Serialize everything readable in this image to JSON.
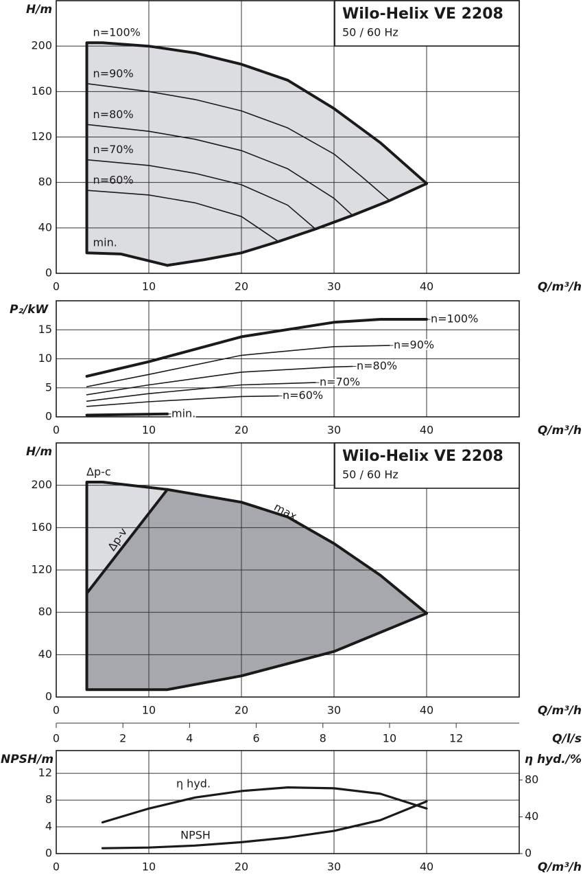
{
  "chart_data": [
    {
      "type": "line",
      "title": "Wilo-Helix VE 2208",
      "subtitle": "50 / 60 Hz",
      "y_label": "H/m",
      "x_label": "Q/m³/h",
      "xlim": [
        0,
        50
      ],
      "xticks": [
        0,
        10,
        20,
        30,
        40
      ],
      "ylim": [
        0,
        240
      ],
      "yticks": [
        0,
        40,
        80,
        120,
        160,
        200
      ],
      "grid": true,
      "fill_color": "#dcdde0",
      "series": [
        {
          "name": "n=100%",
          "x": [
            3.3,
            5,
            10,
            15,
            20,
            25,
            30,
            35,
            40
          ],
          "values": [
            203,
            203,
            200,
            194,
            184,
            170,
            145,
            115,
            79
          ],
          "linewidth": 4
        },
        {
          "name": "n=90%",
          "x": [
            3.3,
            10,
            15,
            20,
            25,
            30,
            33,
            36
          ],
          "values": [
            167,
            160,
            153,
            143,
            128,
            105,
            85,
            64
          ],
          "linewidth": 1.6
        },
        {
          "name": "n=80%",
          "x": [
            3.3,
            10,
            15,
            20,
            25,
            30,
            32
          ],
          "values": [
            131,
            125,
            118,
            108,
            92,
            66,
            51
          ],
          "linewidth": 1.6
        },
        {
          "name": "n=70%",
          "x": [
            3.3,
            10,
            15,
            20,
            25,
            28
          ],
          "values": [
            100,
            95,
            88,
            78,
            60,
            39
          ],
          "linewidth": 1.6
        },
        {
          "name": "n=60%",
          "x": [
            3.3,
            10,
            15,
            20,
            24
          ],
          "values": [
            73,
            69,
            62,
            50,
            28
          ],
          "linewidth": 1.6
        },
        {
          "name": "min.",
          "x": [
            3.3,
            7,
            12
          ],
          "values": [
            18,
            17,
            7
          ],
          "linewidth": 4
        },
        {
          "x": [
            12,
            16,
            20,
            24,
            28,
            32,
            36,
            40
          ],
          "values": [
            7,
            12,
            18,
            28,
            39,
            51,
            64,
            79
          ],
          "linewidth": 4
        }
      ]
    },
    {
      "type": "line",
      "y_label": "P₂/kW",
      "x_label": "Q/m³/h",
      "xlim": [
        0,
        50
      ],
      "xticks": [
        0,
        10,
        20,
        30,
        40
      ],
      "ylim": [
        0,
        20
      ],
      "yticks": [
        0,
        5,
        10,
        15
      ],
      "grid": true,
      "series": [
        {
          "name": "n=100%",
          "x": [
            3.3,
            10,
            20,
            30,
            35,
            40
          ],
          "values": [
            7,
            9.5,
            13.8,
            16.3,
            16.8,
            16.8
          ],
          "linewidth": 4
        },
        {
          "name": "n=90%",
          "x": [
            3.3,
            10,
            20,
            30,
            36
          ],
          "values": [
            5.2,
            7.3,
            10.6,
            12.1,
            12.3
          ],
          "linewidth": 1.6
        },
        {
          "name": "n=80%",
          "x": [
            3.3,
            10,
            20,
            30,
            32
          ],
          "values": [
            3.8,
            5.5,
            7.7,
            8.6,
            8.7
          ],
          "linewidth": 1.6
        },
        {
          "name": "n=70%",
          "x": [
            3.3,
            10,
            20,
            28
          ],
          "values": [
            2.7,
            4,
            5.5,
            5.9
          ],
          "linewidth": 1.6
        },
        {
          "name": "n=60%",
          "x": [
            3.3,
            10,
            20,
            24
          ],
          "values": [
            1.8,
            2.6,
            3.5,
            3.6
          ],
          "linewidth": 1.6
        },
        {
          "name": "min.",
          "x": [
            3.3,
            12
          ],
          "values": [
            0.3,
            0.5
          ],
          "linewidth": 4
        }
      ]
    },
    {
      "type": "area",
      "title": "Wilo-Helix VE 2208",
      "subtitle": "50 / 60 Hz",
      "y_label": "H/m",
      "x_label": "Q/m³/h",
      "x2_label": "Q/l/s",
      "xlim": [
        0,
        50
      ],
      "xticks": [
        0,
        10,
        20,
        30,
        40
      ],
      "x2lim": [
        0,
        13.89
      ],
      "x2ticks": [
        0,
        2,
        4,
        6,
        8,
        10,
        12
      ],
      "ylim": [
        0,
        240
      ],
      "yticks": [
        0,
        40,
        80,
        120,
        160,
        200
      ],
      "grid": true,
      "annotation": "Δp-c",
      "fill_color": "#dcdde0",
      "fill_color_2": "#a6a8ad",
      "series": [
        {
          "name": "max.",
          "x": [
            3.3,
            5,
            12,
            20,
            25,
            30,
            35,
            40
          ],
          "values": [
            203,
            203,
            196,
            184,
            170,
            145,
            115,
            79
          ],
          "linewidth": 4
        },
        {
          "name": "Δp-v",
          "x": [
            3.3,
            12
          ],
          "values": [
            98,
            196
          ],
          "linewidth": 4
        },
        {
          "x": [
            3.3,
            12,
            20,
            30,
            40
          ],
          "values": [
            7,
            7,
            20,
            43,
            79
          ],
          "linewidth": 4
        }
      ]
    },
    {
      "type": "line",
      "y_label": "NPSH/m",
      "y2_label": "η hyd./%",
      "x_label": "Q/m³/h",
      "xlim": [
        0,
        50
      ],
      "xticks": [
        0,
        10,
        20,
        30,
        40
      ],
      "ylim": [
        0,
        15.4
      ],
      "yticks": [
        0,
        4,
        8,
        12
      ],
      "y2lim": [
        0,
        112
      ],
      "y2ticks": [
        0,
        40,
        80
      ],
      "grid": true,
      "series": [
        {
          "name": "NPSH",
          "x": [
            5,
            10,
            15,
            20,
            25,
            30,
            35,
            40
          ],
          "values": [
            0.8,
            0.9,
            1.2,
            1.7,
            2.4,
            3.4,
            5,
            7.8
          ],
          "linewidth": 3.2
        },
        {
          "name": "η hyd.",
          "axis": "y2",
          "x": [
            5,
            10,
            15,
            20,
            25,
            30,
            35,
            40
          ],
          "values": [
            34,
            49,
            61,
            68,
            72,
            71,
            65,
            49
          ],
          "linewidth": 3.2
        }
      ]
    }
  ]
}
